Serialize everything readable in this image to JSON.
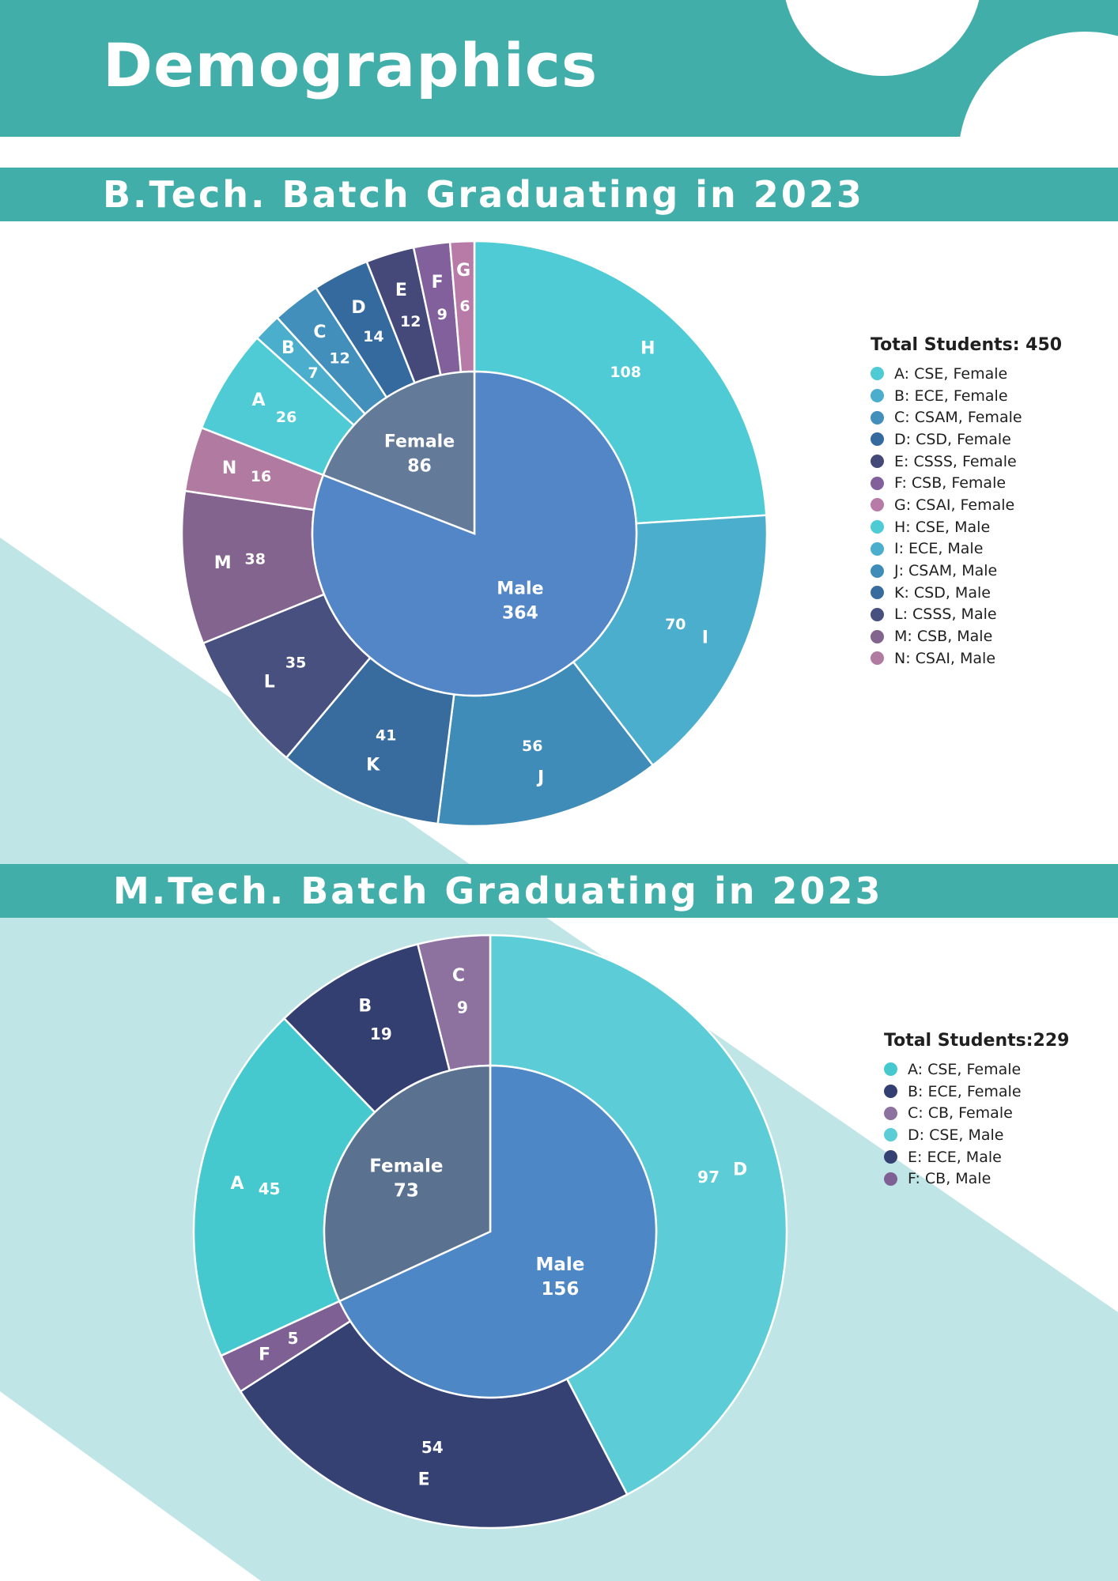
{
  "page": {
    "title": "Demographics"
  },
  "colors": {
    "teal": "#41aea9",
    "teal_light": "#bfe5e6",
    "white": "#ffffff",
    "text_dark": "#1f1f1f"
  },
  "sections": [
    {
      "title": "B.Tech. Batch Graduating in 2023"
    },
    {
      "title": "M.Tech. Batch Graduating in 2023"
    }
  ],
  "chart_data": [
    {
      "type": "pie",
      "subtype": "nested-donut",
      "legend_title": "Total Students: 450",
      "legend_position": "right",
      "inner": [
        {
          "name": "Female",
          "value": 86,
          "color": "#647a99"
        },
        {
          "name": "Male",
          "value": 364,
          "color": "#5386c6"
        }
      ],
      "outer": [
        {
          "label": "H",
          "legend": "H: CSE, Male",
          "value": 108,
          "color": "#4ecbd4"
        },
        {
          "label": "I",
          "legend": "I: ECE, Male",
          "value": 70,
          "color": "#4aaecc"
        },
        {
          "label": "J",
          "legend": "J: CSAM, Male",
          "value": 56,
          "color": "#3f8cb9"
        },
        {
          "label": "K",
          "legend": "K: CSD, Male",
          "value": 41,
          "color": "#386c9e"
        },
        {
          "label": "L",
          "legend": "L: CSSS, Male",
          "value": 35,
          "color": "#48507f"
        },
        {
          "label": "M",
          "legend": "M: CSB, Male",
          "value": 38,
          "color": "#83648f"
        },
        {
          "label": "N",
          "legend": "N: CSAI, Male",
          "value": 16,
          "color": "#b07aa1"
        },
        {
          "label": "A",
          "legend": "A: CSE, Female",
          "value": 26,
          "color": "#4ecbd4"
        },
        {
          "label": "B",
          "legend": "B: ECE, Female",
          "value": 7,
          "color": "#4aaecc"
        },
        {
          "label": "C",
          "legend": "C: CSAM, Female",
          "value": 12,
          "color": "#428fbc"
        },
        {
          "label": "D",
          "legend": "D: CSD, Female",
          "value": 14,
          "color": "#346a9e"
        },
        {
          "label": "E",
          "legend": "E: CSSS, Female",
          "value": 12,
          "color": "#44497a"
        },
        {
          "label": "F",
          "legend": "F: CSB, Female",
          "value": 9,
          "color": "#82609c"
        },
        {
          "label": "G",
          "legend": "G: CSAI, Female",
          "value": 6,
          "color": "#b87aa6"
        }
      ],
      "legend": [
        {
          "text": "A: CSE, Female",
          "color": "#4ecbd4"
        },
        {
          "text": "B: ECE, Female",
          "color": "#4aaecc"
        },
        {
          "text": "C: CSAM, Female",
          "color": "#428fbc"
        },
        {
          "text": "D: CSD, Female",
          "color": "#346a9e"
        },
        {
          "text": "E: CSSS, Female",
          "color": "#44497a"
        },
        {
          "text": "F: CSB, Female",
          "color": "#82609c"
        },
        {
          "text": "G: CSAI, Female",
          "color": "#b87aa6"
        },
        {
          "text": "H: CSE, Male",
          "color": "#4ecbd4"
        },
        {
          "text": "I: ECE, Male",
          "color": "#4aaecc"
        },
        {
          "text": "J: CSAM, Male",
          "color": "#3f8cb9"
        },
        {
          "text": "K: CSD, Male",
          "color": "#386c9e"
        },
        {
          "text": "L: CSSS, Male",
          "color": "#48507f"
        },
        {
          "text": "M: CSB, Male",
          "color": "#83648f"
        },
        {
          "text": "N: CSAI, Male",
          "color": "#b07aa1"
        }
      ]
    },
    {
      "type": "pie",
      "subtype": "nested-donut",
      "legend_title": "Total Students:229",
      "legend_position": "right",
      "inner": [
        {
          "name": "Female",
          "value": 73,
          "color": "#5a7290"
        },
        {
          "name": "Male",
          "value": 156,
          "color": "#4d87c5"
        }
      ],
      "outer": [
        {
          "label": "D",
          "legend": "D: CSE, Male",
          "value": 97,
          "color": "#5ccdd6"
        },
        {
          "label": "E",
          "legend": "E: ECE, Male",
          "value": 54,
          "color": "#354173"
        },
        {
          "label": "F",
          "legend": "F: CB, Male",
          "value": 5,
          "color": "#7f6094"
        },
        {
          "label": "A",
          "legend": "A: CSE, Female",
          "value": 45,
          "color": "#45c9cf"
        },
        {
          "label": "B",
          "legend": "B: ECE, Female",
          "value": 19,
          "color": "#333f70"
        },
        {
          "label": "C",
          "legend": "C: CB, Female",
          "value": 9,
          "color": "#8d72a0"
        }
      ],
      "legend": [
        {
          "text": "A: CSE, Female",
          "color": "#45c9cf"
        },
        {
          "text": "B: ECE, Female",
          "color": "#333f70"
        },
        {
          "text": "C: CB, Female",
          "color": "#8d72a0"
        },
        {
          "text": "D: CSE, Male",
          "color": "#5ccdd6"
        },
        {
          "text": "E: ECE, Male",
          "color": "#354173"
        },
        {
          "text": "F: CB, Male",
          "color": "#7f6094"
        }
      ]
    }
  ]
}
